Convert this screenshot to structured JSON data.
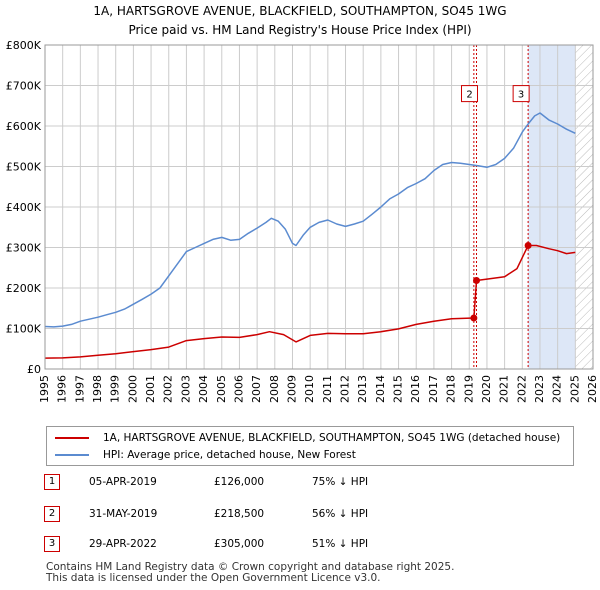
{
  "title": {
    "line1": "1A, HARTSGROVE AVENUE, BLACKFIELD, SOUTHAMPTON, SO45 1WG",
    "line2": "Price paid vs. HM Land Registry's House Price Index (HPI)"
  },
  "colors": {
    "property": "#cc0000",
    "hpi": "#5b8bd0",
    "shade": "#dde7f7",
    "grid": "#cccccc"
  },
  "chart_data": {
    "type": "line",
    "x_range": [
      1995,
      2026
    ],
    "y_range": [
      0,
      800000
    ],
    "y_ticks": [
      {
        "value": 0,
        "label": "£0"
      },
      {
        "value": 100000,
        "label": "£100K"
      },
      {
        "value": 200000,
        "label": "£200K"
      },
      {
        "value": 300000,
        "label": "£300K"
      },
      {
        "value": 400000,
        "label": "£400K"
      },
      {
        "value": 500000,
        "label": "£500K"
      },
      {
        "value": 600000,
        "label": "£600K"
      },
      {
        "value": 700000,
        "label": "£700K"
      },
      {
        "value": 800000,
        "label": "£800K"
      }
    ],
    "x_ticks": [
      "1995",
      "1996",
      "1997",
      "1998",
      "1999",
      "2000",
      "2001",
      "2002",
      "2003",
      "2004",
      "2005",
      "2006",
      "2007",
      "2008",
      "2009",
      "2010",
      "2011",
      "2012",
      "2013",
      "2014",
      "2015",
      "2016",
      "2017",
      "2018",
      "2019",
      "2020",
      "2021",
      "2022",
      "2023",
      "2024",
      "2025",
      "2026"
    ],
    "shaded_region": [
      2022.33,
      2025.0
    ],
    "hatched_region": [
      2025.0,
      2026
    ],
    "series": [
      {
        "name": "1A, HARTSGROVE AVENUE, BLACKFIELD, SOUTHAMPTON, SO45 1WG (detached house)",
        "x": [
          1995.0,
          1996.0,
          1997.0,
          1998.0,
          1999.0,
          2000.0,
          2001.0,
          2002.0,
          2003.0,
          2004.0,
          2005.0,
          2006.0,
          2007.0,
          2007.7,
          2008.5,
          2009.2,
          2010.0,
          2011.0,
          2012.0,
          2013.0,
          2014.0,
          2015.0,
          2016.0,
          2017.0,
          2018.0,
          2019.26,
          2019.41,
          2020.0,
          2021.0,
          2021.7,
          2022.33,
          2022.8,
          2023.5,
          2024.0,
          2024.5,
          2025.0
        ],
        "values": [
          27000,
          27500,
          30000,
          34000,
          37500,
          43000,
          48000,
          54000,
          70000,
          75000,
          79000,
          78000,
          85000,
          92000,
          85000,
          67000,
          83000,
          88000,
          87000,
          87000,
          92000,
          99000,
          110000,
          118000,
          124000,
          126000,
          218500,
          222000,
          228000,
          248000,
          305000,
          305000,
          297000,
          292000,
          285000,
          288000
        ]
      },
      {
        "name": "HPI: Average price, detached house, New Forest",
        "x": [
          1995.0,
          1995.5,
          1996.0,
          1996.5,
          1997.0,
          1997.5,
          1998.0,
          1998.5,
          1999.0,
          1999.5,
          2000.0,
          2000.5,
          2001.0,
          2001.5,
          2002.0,
          2002.5,
          2003.0,
          2003.5,
          2004.0,
          2004.5,
          2005.0,
          2005.5,
          2006.0,
          2006.5,
          2007.0,
          2007.5,
          2007.8,
          2008.2,
          2008.6,
          2009.0,
          2009.2,
          2009.6,
          2010.0,
          2010.5,
          2011.0,
          2011.5,
          2012.0,
          2012.5,
          2013.0,
          2013.5,
          2014.0,
          2014.5,
          2015.0,
          2015.5,
          2016.0,
          2016.5,
          2017.0,
          2017.5,
          2018.0,
          2018.5,
          2019.0,
          2019.5,
          2020.0,
          2020.5,
          2021.0,
          2021.5,
          2022.0,
          2022.33,
          2022.7,
          2023.0,
          2023.5,
          2024.0,
          2024.5,
          2025.0
        ],
        "values": [
          105000,
          104000,
          106000,
          110000,
          118000,
          123000,
          128000,
          134000,
          140000,
          148000,
          160000,
          172000,
          185000,
          200000,
          230000,
          260000,
          290000,
          300000,
          310000,
          320000,
          325000,
          318000,
          320000,
          335000,
          348000,
          362000,
          372000,
          365000,
          345000,
          310000,
          305000,
          330000,
          350000,
          362000,
          368000,
          358000,
          352000,
          358000,
          365000,
          382000,
          400000,
          420000,
          432000,
          448000,
          458000,
          470000,
          490000,
          505000,
          510000,
          508000,
          505000,
          502000,
          498000,
          505000,
          520000,
          545000,
          585000,
          605000,
          625000,
          632000,
          615000,
          605000,
          592000,
          582000
        ]
      }
    ],
    "markers": [
      {
        "label": "1",
        "x": 2019.26,
        "value": 126000
      },
      {
        "label": "2",
        "x": 2019.41,
        "value": 218500
      },
      {
        "label": "3",
        "x": 2022.33,
        "value": 305000
      }
    ],
    "marker_box_value": 680000
  },
  "legend": {
    "property_label": "1A, HARTSGROVE AVENUE, BLACKFIELD, SOUTHAMPTON, SO45 1WG (detached house)",
    "hpi_label": "HPI: Average price, detached house, New Forest"
  },
  "transactions": [
    {
      "num": "1",
      "date": "05-APR-2019",
      "price": "£126,000",
      "hpi": "75% ↓ HPI"
    },
    {
      "num": "2",
      "date": "31-MAY-2019",
      "price": "£218,500",
      "hpi": "56% ↓ HPI"
    },
    {
      "num": "3",
      "date": "29-APR-2022",
      "price": "£305,000",
      "hpi": "51% ↓ HPI"
    }
  ],
  "footer": {
    "line1": "Contains HM Land Registry data © Crown copyright and database right 2025.",
    "line2": "This data is licensed under the Open Government Licence v3.0."
  }
}
